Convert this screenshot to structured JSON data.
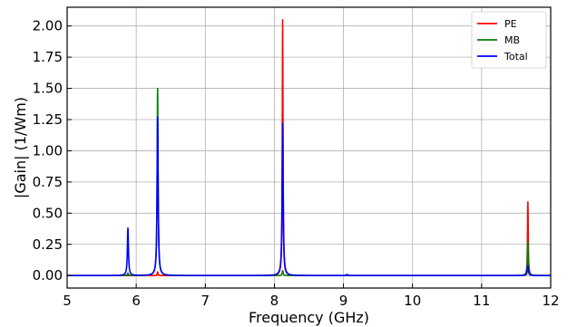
{
  "chart_data": {
    "type": "line",
    "title": "",
    "xlabel": "Frequency (GHz)",
    "ylabel": "|Gain| (1/Wm)",
    "xlim": [
      5,
      12
    ],
    "ylim": [
      -0.1,
      2.15
    ],
    "xticks": [
      5,
      6,
      7,
      8,
      9,
      10,
      11,
      12
    ],
    "xtick_labels": [
      "5",
      "6",
      "7",
      "8",
      "9",
      "10",
      "11",
      "12"
    ],
    "yticks": [
      0,
      0.25,
      0.5,
      0.75,
      1.0,
      1.25,
      1.5,
      1.75,
      2.0
    ],
    "ytick_labels": [
      "0.00",
      "0.25",
      "0.50",
      "0.75",
      "1.00",
      "1.25",
      "1.50",
      "1.75",
      "2.00"
    ],
    "grid": true,
    "legend_position": "top-right",
    "series": [
      {
        "name": "PE",
        "color": "#ff0000",
        "peaks": [
          {
            "x": 5.88,
            "y": 0.0
          },
          {
            "x": 6.31,
            "y": 0.03
          },
          {
            "x": 8.12,
            "y": 2.05
          },
          {
            "x": 11.67,
            "y": 0.59
          }
        ]
      },
      {
        "name": "MB",
        "color": "#008000",
        "peaks": [
          {
            "x": 5.88,
            "y": 0.02
          },
          {
            "x": 6.31,
            "y": 1.5
          },
          {
            "x": 8.12,
            "y": 0.04
          },
          {
            "x": 11.67,
            "y": 0.27
          }
        ]
      },
      {
        "name": "Total",
        "color": "#0000ff",
        "peaks": [
          {
            "x": 5.88,
            "y": 0.38
          },
          {
            "x": 6.31,
            "y": 1.27
          },
          {
            "x": 8.12,
            "y": 1.22
          },
          {
            "x": 9.05,
            "y": 0.01
          },
          {
            "x": 11.67,
            "y": 0.08
          }
        ]
      }
    ]
  }
}
